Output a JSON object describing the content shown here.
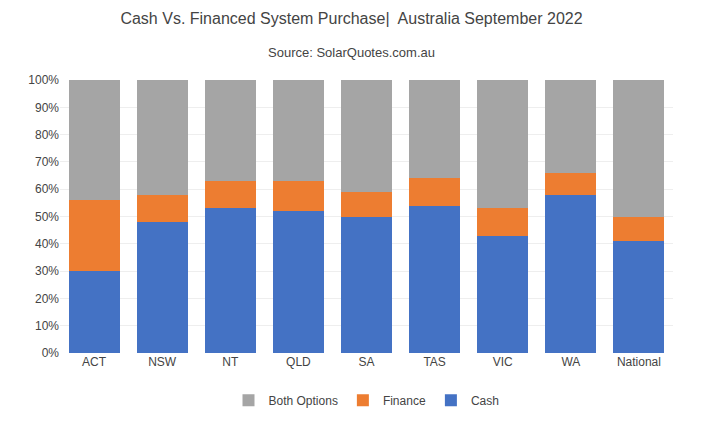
{
  "chart_data": {
    "type": "bar",
    "stacked": true,
    "title": "Cash Vs. Financed System Purchase|  Australia September 2022",
    "subtitle": "Source: SolarQuotes.com.au",
    "categories": [
      "ACT",
      "NSW",
      "NT",
      "QLD",
      "SA",
      "TAS",
      "VIC",
      "WA",
      "National"
    ],
    "series": [
      {
        "name": "Cash",
        "color": "#4472C4",
        "values": [
          30,
          48,
          53,
          52,
          50,
          54,
          43,
          58,
          41
        ]
      },
      {
        "name": "Finance",
        "color": "#ED7D31",
        "values": [
          26,
          10,
          10,
          11,
          9,
          10,
          10,
          8,
          9
        ]
      },
      {
        "name": "Both Options",
        "color": "#A5A5A5",
        "values": [
          44,
          42,
          37,
          37,
          41,
          36,
          47,
          34,
          50
        ]
      }
    ],
    "ylim": [
      0,
      100
    ],
    "yticks": [
      {
        "value": 0,
        "label": "0%"
      },
      {
        "value": 10,
        "label": "10%"
      },
      {
        "value": 20,
        "label": "20%"
      },
      {
        "value": 30,
        "label": "30%"
      },
      {
        "value": 40,
        "label": "40%"
      },
      {
        "value": 50,
        "label": "50%"
      },
      {
        "value": 60,
        "label": "60%"
      },
      {
        "value": 70,
        "label": "70%"
      },
      {
        "value": 80,
        "label": "80%"
      },
      {
        "value": 90,
        "label": "90%"
      },
      {
        "value": 100,
        "label": "100%"
      }
    ],
    "grid": true,
    "legend": "bottom"
  }
}
